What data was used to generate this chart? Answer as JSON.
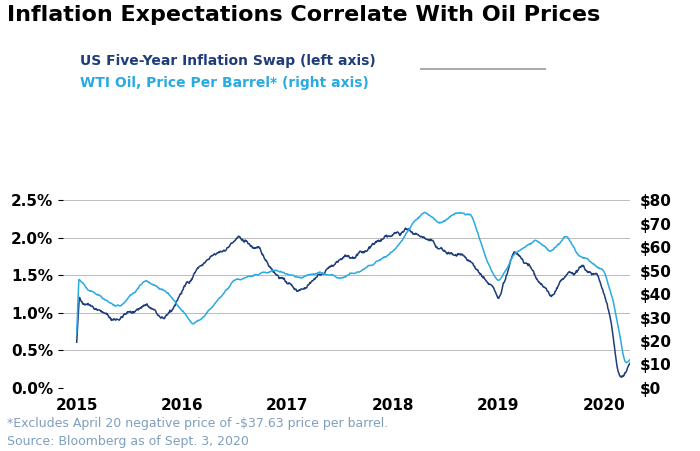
{
  "title": "Inflation Expectations Correlate With Oil Prices",
  "legend_line1": "US Five-Year Inflation Swap (left axis)",
  "legend_line2": "WTI Oil, Price Per Barrel* (right axis)",
  "color_swap": "#1f3d7a",
  "color_oil": "#29abe2",
  "color_legend1": "#1f3d7a",
  "color_legend2": "#29abe2",
  "footnote1": "*Excludes April 20 negative price of -$37.63 price per barrel.",
  "footnote2": "Source: Bloomberg as of Sept. 3, 2020",
  "footnote_color": "#7f9fbf",
  "ylim_left": [
    0.0,
    0.03125
  ],
  "ylim_right": [
    0,
    100
  ],
  "yticks_left": [
    0.0,
    0.005,
    0.01,
    0.015,
    0.02,
    0.025
  ],
  "yticks_right": [
    0,
    10,
    20,
    30,
    40,
    50,
    60,
    70,
    80
  ],
  "xlim": [
    2014.87,
    2020.25
  ],
  "xticks": [
    2015,
    2016,
    2017,
    2018,
    2019,
    2020
  ],
  "background_color": "#ffffff",
  "grid_color": "#bbbbbb",
  "title_fontsize": 16,
  "legend_fontsize": 10,
  "tick_fontsize": 11,
  "footnote_fontsize": 9
}
